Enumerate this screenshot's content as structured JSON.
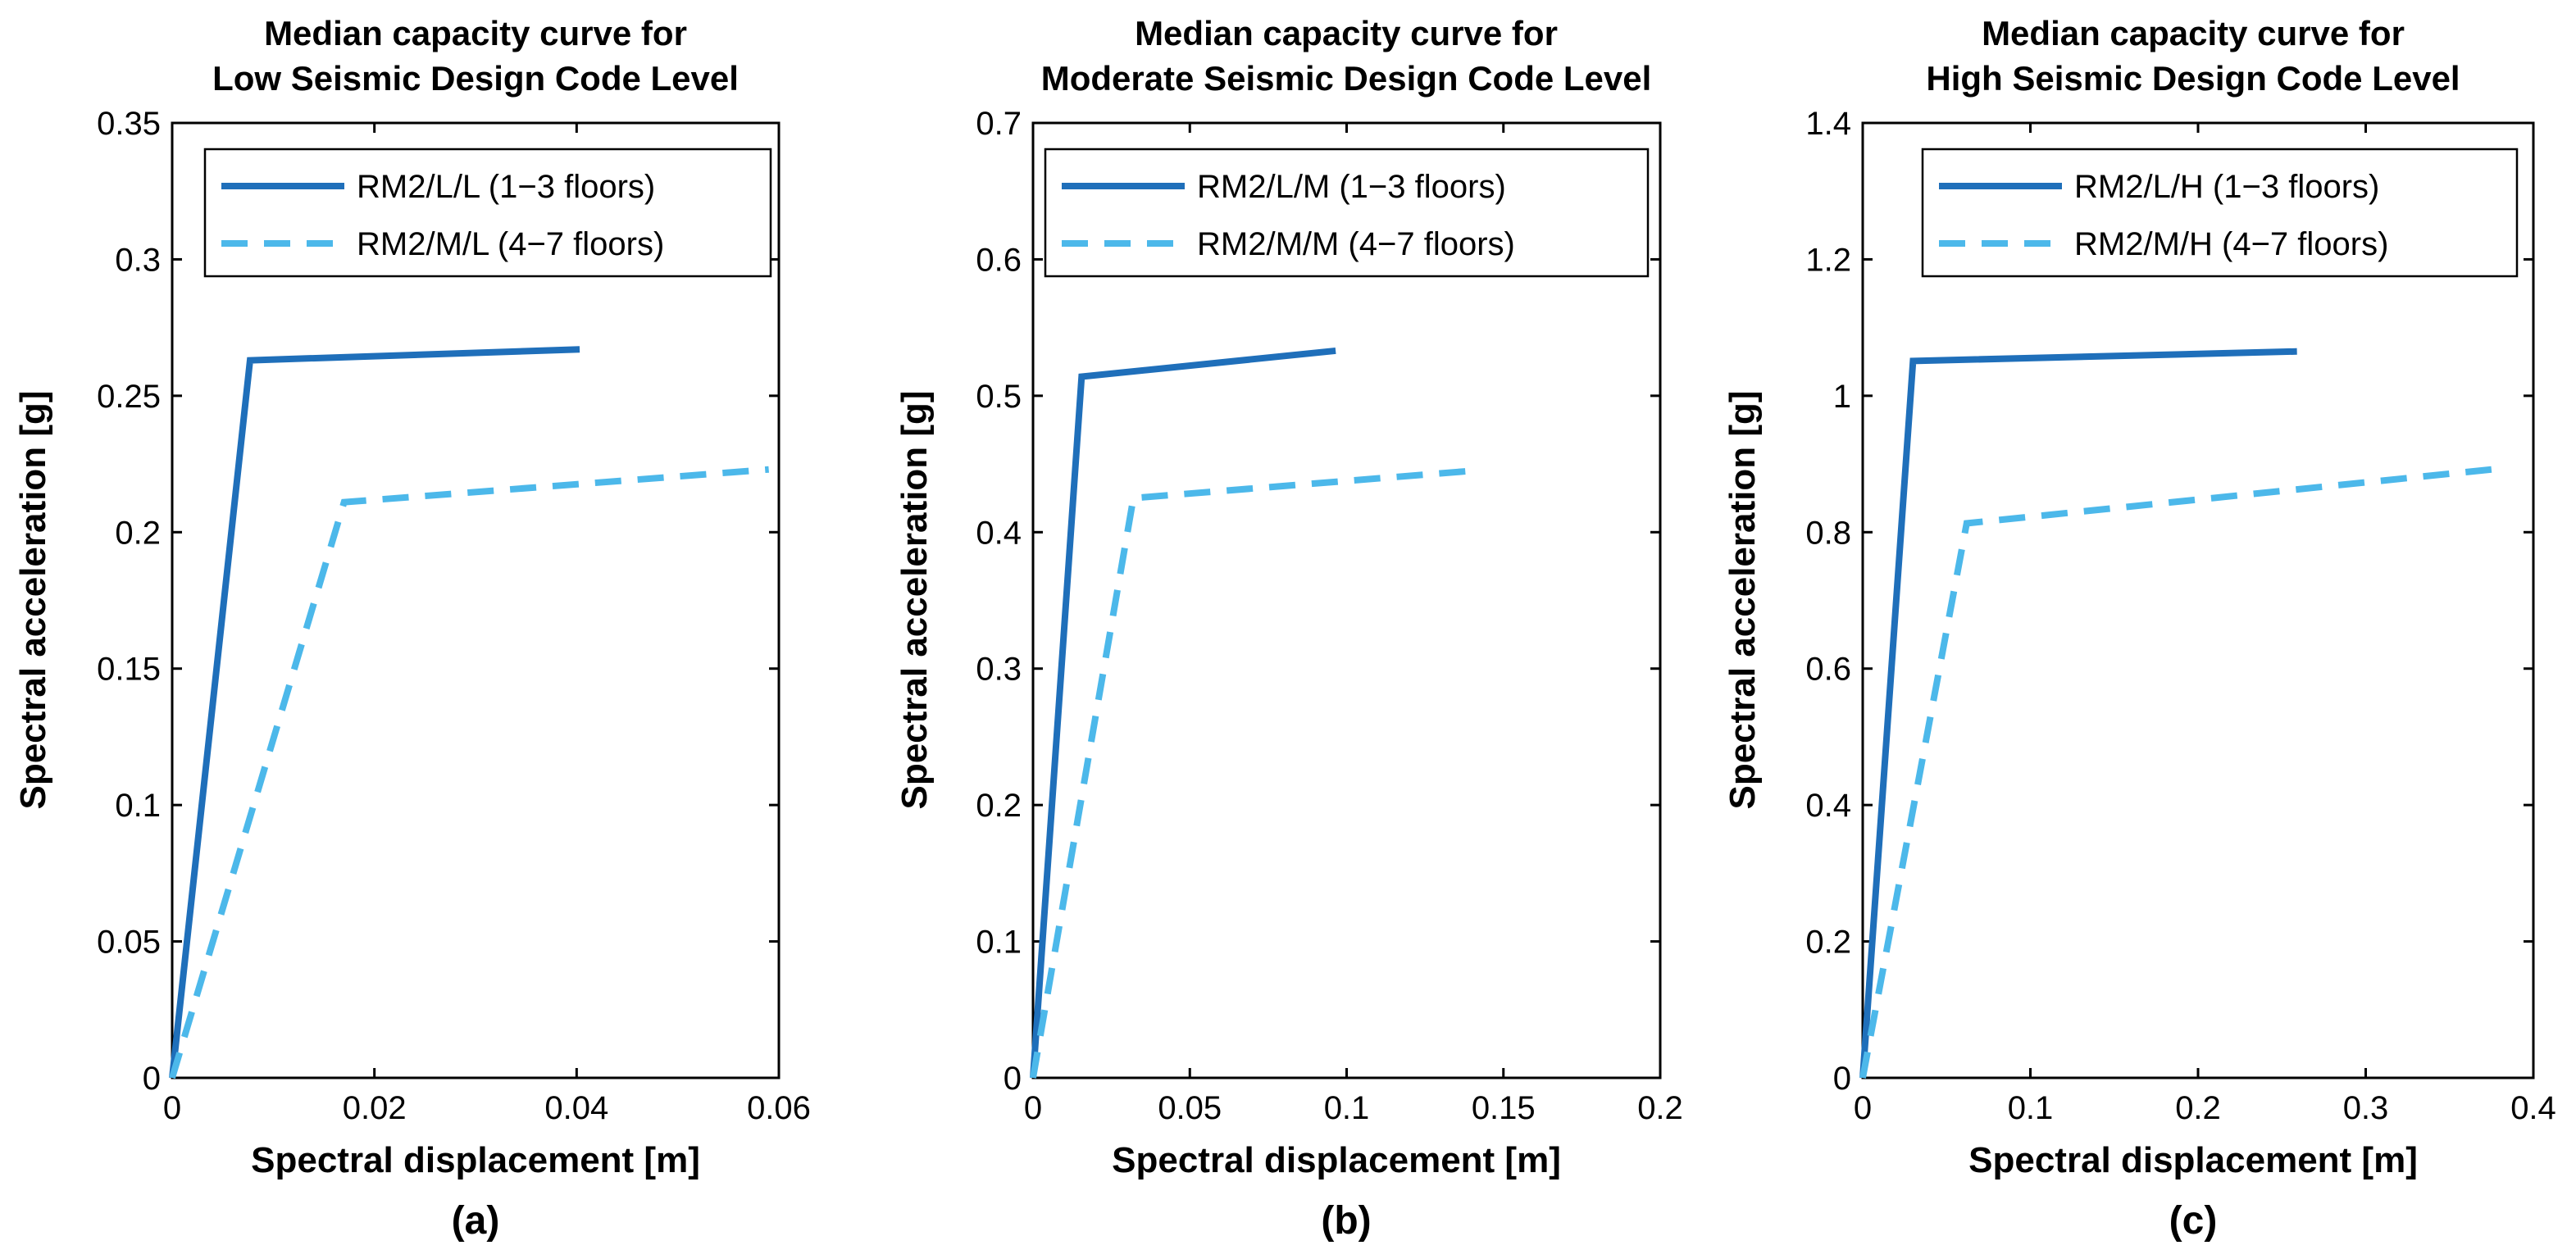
{
  "colors": {
    "series_solid": "#1f6fba",
    "series_dashed": "#4cb8ea",
    "axis": "#000000"
  },
  "chart_data": [
    {
      "type": "line",
      "title_line1": "Median capacity curve for",
      "title_line2": "Low Seismic Design Code Level",
      "xlabel": "Spectral displacement [m]",
      "ylabel": "Spectral acceleration [g]",
      "panel_label": "(a)",
      "xlim": [
        0,
        0.06
      ],
      "ylim": [
        0,
        0.35
      ],
      "xticks": [
        "0",
        "0.02",
        "0.04",
        "0.06"
      ],
      "xtick_values": [
        0,
        0.02,
        0.04,
        0.06
      ],
      "yticks": [
        "0",
        "0.05",
        "0.1",
        "0.15",
        "0.2",
        "0.25",
        "0.3",
        "0.35"
      ],
      "ytick_values": [
        0,
        0.05,
        0.1,
        0.15,
        0.2,
        0.25,
        0.3,
        0.35
      ],
      "legend_position": "top-right",
      "grid": false,
      "series": [
        {
          "name": "RM2/L/L (1−3 floors)",
          "style": "solid",
          "x": [
            0,
            0.0077,
            0.0403
          ],
          "y": [
            0,
            0.263,
            0.267
          ]
        },
        {
          "name": "RM2/M/L (4−7 floors)",
          "style": "dashed",
          "x": [
            0,
            0.017,
            0.059
          ],
          "y": [
            0,
            0.211,
            0.223
          ]
        }
      ]
    },
    {
      "type": "line",
      "title_line1": "Median capacity curve for",
      "title_line2": "Moderate Seismic Design Code Level",
      "xlabel": "Spectral displacement [m]",
      "ylabel": "Spectral acceleration [g]",
      "panel_label": "(b)",
      "xlim": [
        0,
        0.2
      ],
      "ylim": [
        0,
        0.7
      ],
      "xticks": [
        "0",
        "0.05",
        "0.1",
        "0.15",
        "0.2"
      ],
      "xtick_values": [
        0,
        0.05,
        0.1,
        0.15,
        0.2
      ],
      "yticks": [
        "0",
        "0.1",
        "0.2",
        "0.3",
        "0.4",
        "0.5",
        "0.6",
        "0.7"
      ],
      "ytick_values": [
        0,
        0.1,
        0.2,
        0.3,
        0.4,
        0.5,
        0.6,
        0.7
      ],
      "legend_position": "top-right",
      "grid": false,
      "series": [
        {
          "name": "RM2/L/M (1−3 floors)",
          "style": "solid",
          "x": [
            0,
            0.0155,
            0.0965
          ],
          "y": [
            0,
            0.514,
            0.533
          ]
        },
        {
          "name": "RM2/M/M (4−7 floors)",
          "style": "dashed",
          "x": [
            0,
            0.032,
            0.14
          ],
          "y": [
            0,
            0.425,
            0.445
          ]
        }
      ]
    },
    {
      "type": "line",
      "title_line1": "Median capacity curve for",
      "title_line2": "High Seismic Design Code Level",
      "xlabel": "Spectral displacement [m]",
      "ylabel": "Spectral acceleration [g]",
      "panel_label": "(c)",
      "xlim": [
        0,
        0.4
      ],
      "ylim": [
        0,
        1.4
      ],
      "xticks": [
        "0",
        "0.1",
        "0.2",
        "0.3",
        "0.4"
      ],
      "xtick_values": [
        0,
        0.1,
        0.2,
        0.3,
        0.4
      ],
      "yticks": [
        "0",
        "0.2",
        "0.4",
        "0.6",
        "0.8",
        "1",
        "1.2",
        "1.4"
      ],
      "ytick_values": [
        0,
        0.2,
        0.4,
        0.6,
        0.8,
        1.0,
        1.2,
        1.4
      ],
      "legend_position": "top-right",
      "grid": false,
      "series": [
        {
          "name": "RM2/L/H (1−3 floors)",
          "style": "solid",
          "x": [
            0,
            0.03,
            0.259
          ],
          "y": [
            0,
            1.051,
            1.065
          ]
        },
        {
          "name": "RM2/M/H (4−7 floors)",
          "style": "dashed",
          "x": [
            0,
            0.062,
            0.375
          ],
          "y": [
            0,
            0.813,
            0.892
          ]
        }
      ]
    }
  ]
}
